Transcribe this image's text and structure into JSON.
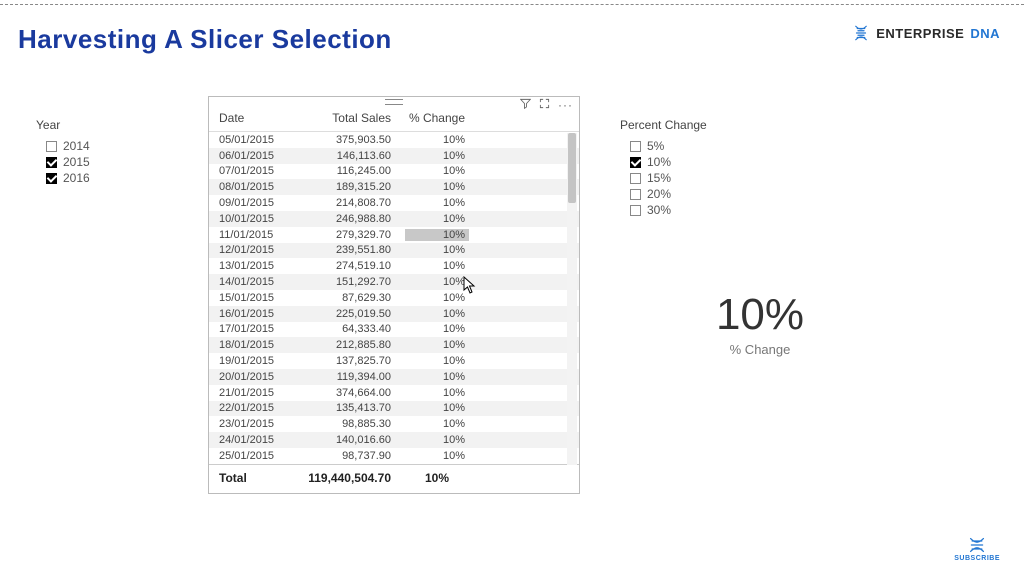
{
  "page_title": "Harvesting A Slicer Selection",
  "logo": {
    "text1": "ENTERPRISE",
    "text2": "DNA"
  },
  "subscribe_label": "SUBSCRIBE",
  "year_slicer": {
    "title": "Year",
    "items": [
      {
        "label": "2014",
        "checked": false
      },
      {
        "label": "2015",
        "checked": true
      },
      {
        "label": "2016",
        "checked": true
      }
    ]
  },
  "pct_slicer": {
    "title": "Percent Change",
    "items": [
      {
        "label": "5%",
        "checked": false
      },
      {
        "label": "10%",
        "checked": true
      },
      {
        "label": "15%",
        "checked": false
      },
      {
        "label": "20%",
        "checked": false
      },
      {
        "label": "30%",
        "checked": false
      }
    ]
  },
  "table": {
    "columns": {
      "date": "Date",
      "sales": "Total Sales",
      "change": "% Change"
    },
    "rows": [
      {
        "date": "05/01/2015",
        "sales": "375,903.50",
        "change": "10%",
        "alt": false
      },
      {
        "date": "06/01/2015",
        "sales": "146,113.60",
        "change": "10%",
        "alt": true
      },
      {
        "date": "07/01/2015",
        "sales": "116,245.00",
        "change": "10%",
        "alt": false
      },
      {
        "date": "08/01/2015",
        "sales": "189,315.20",
        "change": "10%",
        "alt": true
      },
      {
        "date": "09/01/2015",
        "sales": "214,808.70",
        "change": "10%",
        "alt": false
      },
      {
        "date": "10/01/2015",
        "sales": "246,988.80",
        "change": "10%",
        "alt": true
      },
      {
        "date": "11/01/2015",
        "sales": "279,329.70",
        "change": "10%",
        "alt": false,
        "selected": true
      },
      {
        "date": "12/01/2015",
        "sales": "239,551.80",
        "change": "10%",
        "alt": true
      },
      {
        "date": "13/01/2015",
        "sales": "274,519.10",
        "change": "10%",
        "alt": false
      },
      {
        "date": "14/01/2015",
        "sales": "151,292.70",
        "change": "10%",
        "alt": true
      },
      {
        "date": "15/01/2015",
        "sales": "87,629.30",
        "change": "10%",
        "alt": false
      },
      {
        "date": "16/01/2015",
        "sales": "225,019.50",
        "change": "10%",
        "alt": true
      },
      {
        "date": "17/01/2015",
        "sales": "64,333.40",
        "change": "10%",
        "alt": false
      },
      {
        "date": "18/01/2015",
        "sales": "212,885.80",
        "change": "10%",
        "alt": true
      },
      {
        "date": "19/01/2015",
        "sales": "137,825.70",
        "change": "10%",
        "alt": false
      },
      {
        "date": "20/01/2015",
        "sales": "119,394.00",
        "change": "10%",
        "alt": true
      },
      {
        "date": "21/01/2015",
        "sales": "374,664.00",
        "change": "10%",
        "alt": false
      },
      {
        "date": "22/01/2015",
        "sales": "135,413.70",
        "change": "10%",
        "alt": true
      },
      {
        "date": "23/01/2015",
        "sales": "98,885.30",
        "change": "10%",
        "alt": false
      },
      {
        "date": "24/01/2015",
        "sales": "140,016.60",
        "change": "10%",
        "alt": true
      },
      {
        "date": "25/01/2015",
        "sales": "98,737.90",
        "change": "10%",
        "alt": false
      }
    ],
    "total": {
      "label": "Total",
      "sales": "119,440,504.70",
      "change": "10%"
    }
  },
  "card": {
    "value": "10%",
    "label": "% Change"
  },
  "colors": {
    "title": "#1a3a9e",
    "accent": "#2276d2",
    "row_alt": "#f2f2f2",
    "sel_bg": "#c8c8c8",
    "border": "#bbbbbb"
  }
}
